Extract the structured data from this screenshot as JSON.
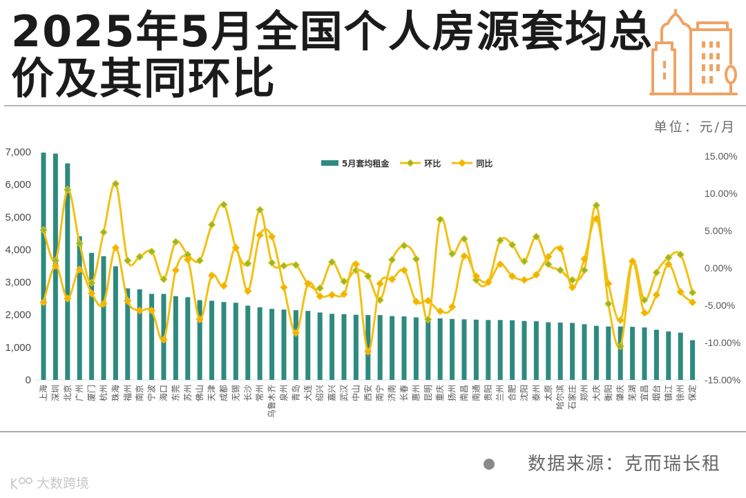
{
  "header": {
    "title_lines": [
      "2025年5月全国个人房源套均总",
      "价及其同环比"
    ],
    "icon": "city-buildings-icon"
  },
  "legend": [
    {
      "label": "5月套均租金",
      "swatch": "bar"
    },
    {
      "label": "环比",
      "swatch": "line-with-green-diamond"
    },
    {
      "label": "同比",
      "swatch": "line-with-yellow-diamond"
    }
  ],
  "footer": {
    "bullet_icon": "dot-icon",
    "source": "数据来源：克而瑞长租",
    "brand_watermark": "大数跨境"
  },
  "colors": {
    "title": "#1b1b1b",
    "icon": "#F0A262",
    "bar": "#2E8A7E",
    "line": "#F2C012",
    "mom_marker": "#8DBB30",
    "yoy_marker": "#F2B300",
    "axis_text": "#4a4a4a",
    "divider": "#b4b4b4"
  },
  "chart_data": {
    "type": "bar",
    "title": "2025年5月全国个人房源套均总价及其同环比",
    "unit": "单位：元/月",
    "xlabel": "",
    "ylabel": "元/月",
    "y2label": "%",
    "categories": [
      "上海",
      "深圳",
      "北京",
      "广州",
      "厦门",
      "杭州",
      "珠海",
      "福州",
      "南京",
      "宁波",
      "海口",
      "东莞",
      "苏州",
      "佛山",
      "天津",
      "成都",
      "无锡",
      "长沙",
      "常州",
      "乌鲁木齐",
      "泉州",
      "青岛",
      "大连",
      "绍兴",
      "嘉兴",
      "武汉",
      "中山",
      "西安",
      "南宁",
      "济南",
      "长春",
      "惠州",
      "昆明",
      "重庆",
      "扬州",
      "南昌",
      "南通",
      "贵阳",
      "兰州",
      "合肥",
      "沈阳",
      "泰州",
      "太原",
      "哈尔滨",
      "石家庄",
      "郑州",
      "大庆",
      "衡阳",
      "肇庆",
      "芜湖",
      "宜昌",
      "烟台",
      "镇江",
      "徐州",
      "保定"
    ],
    "series": [
      {
        "name": "5月套均租金",
        "type": "bar",
        "axis": "left",
        "values": [
          6980,
          6950,
          6650,
          4410,
          3900,
          3800,
          3490,
          2810,
          2780,
          2640,
          2640,
          2570,
          2540,
          2450,
          2430,
          2390,
          2370,
          2280,
          2230,
          2180,
          2160,
          2140,
          2120,
          2070,
          2030,
          2020,
          2000,
          1990,
          1990,
          1960,
          1950,
          1920,
          1900,
          1890,
          1870,
          1860,
          1850,
          1840,
          1840,
          1830,
          1810,
          1800,
          1770,
          1760,
          1750,
          1710,
          1660,
          1640,
          1640,
          1630,
          1610,
          1540,
          1490,
          1450,
          1220
        ]
      },
      {
        "name": "环比",
        "type": "line",
        "axis": "right",
        "smooth": true,
        "marker": "diamond",
        "unit": "%",
        "values": [
          5.1,
          1.0,
          10.5,
          3.3,
          -2.0,
          4.8,
          11.3,
          1.0,
          1.5,
          2.2,
          -1.5,
          3.5,
          1.8,
          1.0,
          5.8,
          8.5,
          2.7,
          0.6,
          7.8,
          0.7,
          0.3,
          0.4,
          -2.1,
          -2.7,
          0.8,
          -1.8,
          -0.3,
          -1.1,
          -4.3,
          1.1,
          3.0,
          1.2,
          -6.9,
          6.5,
          1.9,
          3.9,
          -1.6,
          -1.9,
          3.7,
          3.1,
          0.9,
          4.2,
          0.5,
          -0.3,
          -1.6,
          -0.3,
          8.4,
          -4.8,
          -10.5,
          0.9,
          -4.3,
          -0.6,
          1.4,
          1.8,
          -3.3
        ]
      },
      {
        "name": "同比",
        "type": "line",
        "axis": "right",
        "smooth": true,
        "marker": "diamond",
        "unit": "%",
        "values": [
          -4.6,
          0.3,
          -4.1,
          -0.2,
          -3.4,
          -4.8,
          2.7,
          -4.4,
          -5.7,
          -5.7,
          -9.6,
          -0.3,
          1.1,
          -6.9,
          -1.0,
          -2.4,
          2.7,
          -3.1,
          4.4,
          4.2,
          -2.6,
          -8.7,
          -2.1,
          -3.8,
          -3.6,
          -3.5,
          0.5,
          -11.2,
          -2.1,
          -1.5,
          -0.3,
          -4.5,
          -4.4,
          -5.8,
          -5.2,
          1.6,
          -1.1,
          -1.9,
          0.5,
          -1.1,
          -1.6,
          -0.9,
          1.5,
          2.6,
          -2.6,
          1.2,
          6.6,
          -2.1,
          -7.0,
          0.9,
          -6.0,
          -3.6,
          0.5,
          -3.2,
          -4.6
        ]
      }
    ],
    "ylim": [
      0,
      7000
    ],
    "y2lim": [
      -15,
      15
    ],
    "yticks": [
      "0",
      "1,000",
      "2,000",
      "3,000",
      "4,000",
      "5,000",
      "6,000",
      "7,000"
    ],
    "y2ticks": [
      "-15.00%",
      "-10.00%",
      "-5.00%",
      "0.00%",
      "5.00%",
      "10.00%",
      "15.00%"
    ],
    "grid": false,
    "legend_position": "top-center",
    "xtick_rotation": -90
  }
}
